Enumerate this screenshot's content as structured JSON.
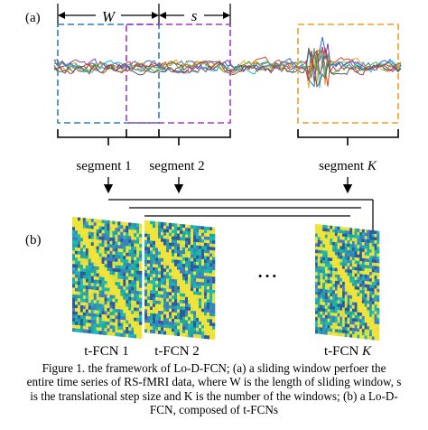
{
  "panels": {
    "a_label": "(a)",
    "b_label": "(b)"
  },
  "window_labels": {
    "w": "W",
    "s": "s"
  },
  "segments": [
    {
      "label": "segment 1"
    },
    {
      "label": "segment 2"
    },
    {
      "label": "segment K"
    }
  ],
  "ellipsis": "• • •",
  "tfcn": [
    {
      "label": "t-FCN 1"
    },
    {
      "label": "t-FCN 2"
    },
    {
      "label": "t-FCN K"
    }
  ],
  "caption": {
    "lines": [
      "Figure 1.     the framework of Lo-D-FCN; (a) a sliding window perfoer the",
      "entire time series of RS-fMRI data, where W is the length of sliding window, s",
      "is the translational step size and K is the number of the windows; (b) a Lo-D-",
      "FCN, composed of t-FCNs"
    ]
  },
  "colors": {
    "window_1": "#2a7fc4",
    "window_2": "#a23ac0",
    "window_k": "#f0a020",
    "matrix_low": "#2c5aa0",
    "matrix_mid": "#22a6a0",
    "matrix_high": "#f0e43a"
  },
  "series_colors": [
    "#1f6fd1",
    "#d6422a",
    "#e1a72a",
    "#7a3fb0",
    "#4fa83b",
    "#2bb6c9",
    "#b8402e",
    "#5c5c5c"
  ]
}
